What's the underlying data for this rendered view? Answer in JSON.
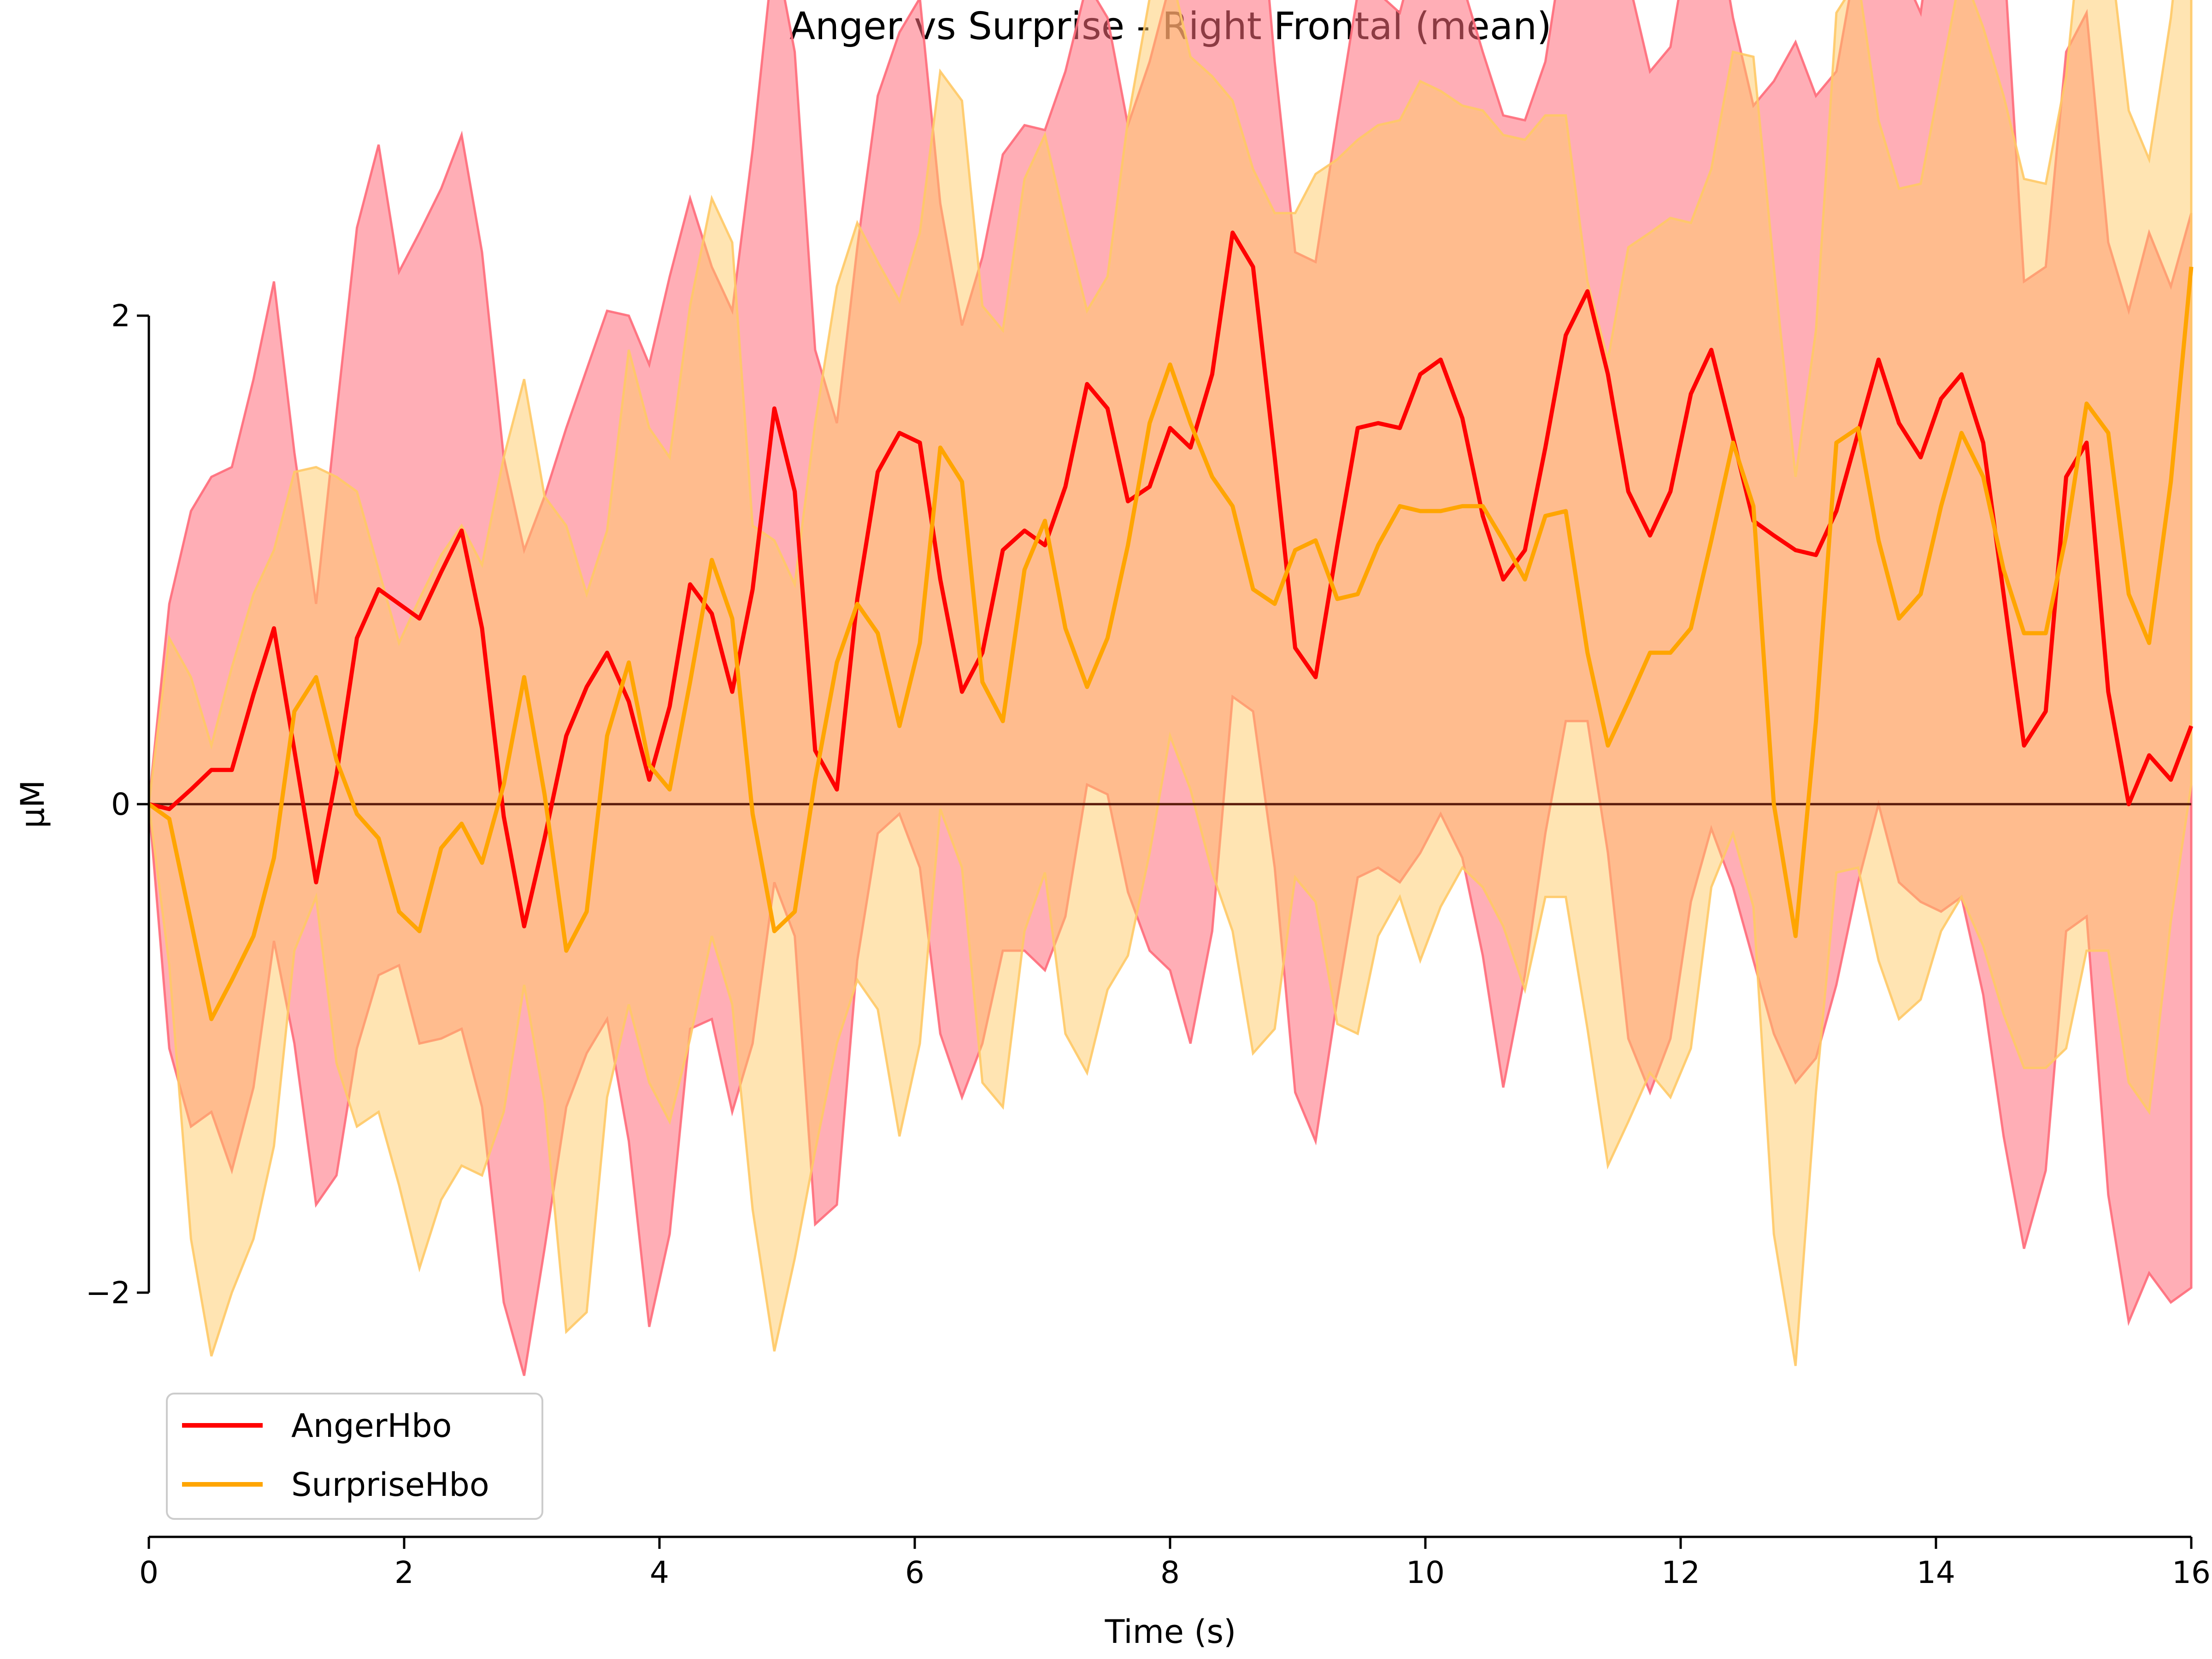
{
  "chart_data": {
    "type": "line",
    "title": "Anger vs Surprise - Right Frontal (mean)",
    "xlabel": "Time (s)",
    "ylabel": "µM",
    "xlim": [
      0,
      16
    ],
    "ylim": [
      -2,
      2
    ],
    "x_ticks": [
      "0",
      "2",
      "4",
      "6",
      "8",
      "10",
      "12",
      "14",
      "16"
    ],
    "y_ticks": [
      "−2",
      "0",
      "2"
    ],
    "grid": false,
    "zero_line": true,
    "legend": {
      "placement": "bottom-left"
    },
    "x": [
      0.0,
      0.16,
      0.33,
      0.49,
      0.65,
      0.82,
      0.98,
      1.14,
      1.31,
      1.47,
      1.63,
      1.8,
      1.96,
      2.12,
      2.29,
      2.45,
      2.61,
      2.78,
      2.94,
      3.1,
      3.27,
      3.43,
      3.59,
      3.76,
      3.92,
      4.08,
      4.24,
      4.41,
      4.57,
      4.73,
      4.9,
      5.06,
      5.22,
      5.39,
      5.55,
      5.71,
      5.88,
      6.04,
      6.2,
      6.37,
      6.53,
      6.69,
      6.86,
      7.02,
      7.18,
      7.35,
      7.51,
      7.67,
      7.84,
      8.0,
      8.16,
      8.33,
      8.49,
      8.65,
      8.82,
      8.98,
      9.14,
      9.31,
      9.47,
      9.63,
      9.8,
      9.96,
      10.12,
      10.29,
      10.45,
      10.61,
      10.78,
      10.94,
      11.1,
      11.27,
      11.43,
      11.59,
      11.76,
      11.92,
      12.08,
      12.24,
      12.41,
      12.57,
      12.73,
      12.9,
      13.06,
      13.22,
      13.39,
      13.55,
      13.71,
      13.88,
      14.04,
      14.2,
      14.37,
      14.53,
      14.69,
      14.86,
      15.02,
      15.18,
      15.35,
      15.51,
      15.67,
      15.84,
      16.0
    ],
    "series": [
      {
        "name": "AngerHbo",
        "color": "#ff0000",
        "band_color": "#ff6b7a",
        "values": [
          0,
          -0.02,
          0.06,
          0.14,
          0.14,
          0.45,
          0.72,
          0.22,
          -0.32,
          0.12,
          0.68,
          0.88,
          0.82,
          0.76,
          0.95,
          1.12,
          0.72,
          -0.05,
          -0.5,
          -0.14,
          0.28,
          0.48,
          0.62,
          0.42,
          0.1,
          0.4,
          0.9,
          0.78,
          0.46,
          0.88,
          1.62,
          1.28,
          0.22,
          0.06,
          0.84,
          1.36,
          1.52,
          1.48,
          0.92,
          0.46,
          0.62,
          1.04,
          1.12,
          1.06,
          1.3,
          1.72,
          1.62,
          1.24,
          1.3,
          1.54,
          1.46,
          1.76,
          2.34,
          2.2,
          1.42,
          0.64,
          0.52,
          1.06,
          1.54,
          1.56,
          1.54,
          1.76,
          1.82,
          1.58,
          1.18,
          0.92,
          1.04,
          1.46,
          1.92,
          2.1,
          1.76,
          1.28,
          1.1,
          1.28,
          1.68,
          1.86,
          1.5,
          1.16,
          1.1,
          1.04,
          1.02,
          1.2,
          1.52,
          1.82,
          1.56,
          1.42,
          1.66,
          1.76,
          1.48,
          0.86,
          0.24,
          0.38,
          1.34,
          1.48,
          0.46,
          0.0,
          0.2,
          0.1,
          0.32
        ],
        "upper": [
          0,
          0.82,
          1.2,
          1.34,
          1.38,
          1.74,
          2.14,
          1.44,
          0.82,
          1.6,
          2.36,
          2.7,
          2.18,
          2.34,
          2.52,
          2.74,
          2.26,
          1.42,
          1.04,
          1.26,
          1.54,
          1.78,
          2.02,
          2.0,
          1.8,
          2.16,
          2.48,
          2.2,
          2.02,
          2.68,
          3.52,
          3.08,
          1.86,
          1.56,
          2.28,
          2.9,
          3.16,
          3.3,
          2.46,
          1.96,
          2.24,
          2.66,
          2.78,
          2.76,
          3.0,
          3.36,
          3.22,
          2.78,
          3.04,
          3.36,
          3.6,
          3.76,
          4.12,
          4.06,
          3.04,
          2.26,
          2.22,
          2.8,
          3.32,
          3.32,
          3.24,
          3.56,
          3.58,
          3.36,
          3.08,
          2.82,
          2.8,
          3.04,
          3.58,
          3.86,
          3.76,
          3.38,
          3.0,
          3.1,
          3.6,
          3.74,
          3.22,
          2.86,
          2.96,
          3.12,
          2.9,
          3.0,
          3.5,
          3.8,
          3.44,
          3.24,
          3.84,
          3.74,
          3.76,
          3.5,
          2.14,
          2.2,
          3.08,
          3.24,
          2.3,
          2.02,
          2.34,
          2.12,
          2.42
        ],
        "lower": [
          0,
          -1.0,
          -1.32,
          -1.26,
          -1.5,
          -1.16,
          -0.56,
          -0.98,
          -1.64,
          -1.52,
          -1.0,
          -0.7,
          -0.66,
          -0.98,
          -0.96,
          -0.92,
          -1.24,
          -2.04,
          -2.34,
          -1.82,
          -1.24,
          -1.02,
          -0.88,
          -1.38,
          -2.14,
          -1.76,
          -0.92,
          -0.88,
          -1.26,
          -0.98,
          -0.32,
          -0.54,
          -1.72,
          -1.64,
          -0.64,
          -0.12,
          -0.04,
          -0.26,
          -0.94,
          -1.2,
          -0.98,
          -0.6,
          -0.6,
          -0.68,
          -0.46,
          0.08,
          0.04,
          -0.36,
          -0.6,
          -0.68,
          -0.98,
          -0.52,
          0.44,
          0.38,
          -0.26,
          -1.18,
          -1.38,
          -0.8,
          -0.3,
          -0.26,
          -0.32,
          -0.2,
          -0.04,
          -0.22,
          -0.62,
          -1.16,
          -0.7,
          -0.12,
          0.34,
          0.34,
          -0.2,
          -0.96,
          -1.18,
          -0.96,
          -0.4,
          -0.1,
          -0.34,
          -0.64,
          -0.94,
          -1.14,
          -1.04,
          -0.74,
          -0.32,
          0.0,
          -0.32,
          -0.4,
          -0.44,
          -0.38,
          -0.78,
          -1.36,
          -1.82,
          -1.5,
          -0.52,
          -0.46,
          -1.6,
          -2.12,
          -1.92,
          -2.04,
          -1.98
        ]
      },
      {
        "name": "SurpriseHbo",
        "color": "#ffa500",
        "band_color": "#ffc966",
        "values": [
          0,
          -0.06,
          -0.48,
          -0.88,
          -0.72,
          -0.54,
          -0.22,
          0.38,
          0.52,
          0.18,
          -0.04,
          -0.14,
          -0.44,
          -0.52,
          -0.18,
          -0.08,
          -0.24,
          0.08,
          0.52,
          0.04,
          -0.6,
          -0.44,
          0.28,
          0.58,
          0.16,
          0.06,
          0.5,
          1.0,
          0.76,
          -0.04,
          -0.52,
          -0.44,
          0.1,
          0.58,
          0.82,
          0.7,
          0.32,
          0.66,
          1.46,
          1.32,
          0.5,
          0.34,
          0.96,
          1.16,
          0.72,
          0.48,
          0.68,
          1.06,
          1.56,
          1.8,
          1.56,
          1.34,
          1.22,
          0.88,
          0.82,
          1.04,
          1.08,
          0.84,
          0.86,
          1.06,
          1.22,
          1.2,
          1.2,
          1.22,
          1.22,
          1.08,
          0.92,
          1.18,
          1.2,
          0.62,
          0.24,
          0.42,
          0.62,
          0.62,
          0.72,
          1.08,
          1.48,
          1.22,
          0.0,
          -0.54,
          0.34,
          1.48,
          1.54,
          1.08,
          0.76,
          0.86,
          1.22,
          1.52,
          1.34,
          0.96,
          0.7,
          0.7,
          1.1,
          1.64,
          1.52,
          0.86,
          0.66,
          1.32,
          2.2
        ],
        "upper": [
          0,
          0.68,
          0.52,
          0.24,
          0.56,
          0.86,
          1.04,
          1.36,
          1.38,
          1.34,
          1.28,
          0.96,
          0.66,
          0.84,
          1.02,
          1.14,
          0.98,
          1.42,
          1.74,
          1.26,
          1.14,
          0.86,
          1.12,
          1.86,
          1.54,
          1.42,
          2.04,
          2.48,
          2.3,
          1.14,
          1.08,
          0.9,
          1.56,
          2.12,
          2.38,
          2.22,
          2.06,
          2.34,
          3.0,
          2.88,
          2.04,
          1.94,
          2.56,
          2.74,
          2.38,
          2.02,
          2.16,
          2.8,
          3.3,
          3.42,
          3.06,
          2.98,
          2.88,
          2.6,
          2.42,
          2.42,
          2.58,
          2.64,
          2.72,
          2.78,
          2.8,
          2.96,
          2.92,
          2.86,
          2.84,
          2.74,
          2.72,
          2.82,
          2.82,
          2.14,
          1.82,
          2.28,
          2.34,
          2.4,
          2.38,
          2.6,
          3.08,
          3.06,
          2.2,
          1.34,
          1.94,
          3.24,
          3.38,
          2.8,
          2.52,
          2.54,
          2.98,
          3.42,
          3.18,
          2.9,
          2.56,
          2.54,
          2.98,
          3.82,
          3.56,
          2.84,
          2.64,
          3.22,
          4.0
        ],
        "lower": [
          0,
          -0.66,
          -1.78,
          -2.26,
          -2.0,
          -1.78,
          -1.4,
          -0.6,
          -0.38,
          -1.06,
          -1.32,
          -1.26,
          -1.56,
          -1.9,
          -1.62,
          -1.48,
          -1.52,
          -1.26,
          -0.74,
          -1.22,
          -2.16,
          -2.08,
          -1.2,
          -0.82,
          -1.14,
          -1.3,
          -0.96,
          -0.54,
          -0.82,
          -1.66,
          -2.24,
          -1.86,
          -1.42,
          -0.98,
          -0.72,
          -0.84,
          -1.36,
          -0.98,
          -0.02,
          -0.26,
          -1.14,
          -1.24,
          -0.52,
          -0.28,
          -0.94,
          -1.1,
          -0.76,
          -0.62,
          -0.2,
          0.28,
          0.06,
          -0.28,
          -0.52,
          -1.02,
          -0.92,
          -0.3,
          -0.4,
          -0.9,
          -0.94,
          -0.54,
          -0.38,
          -0.64,
          -0.42,
          -0.26,
          -0.34,
          -0.5,
          -0.76,
          -0.38,
          -0.38,
          -0.92,
          -1.48,
          -1.3,
          -1.1,
          -1.2,
          -1.0,
          -0.34,
          -0.12,
          -0.42,
          -1.76,
          -2.3,
          -1.18,
          -0.28,
          -0.26,
          -0.64,
          -0.88,
          -0.8,
          -0.52,
          -0.38,
          -0.58,
          -0.86,
          -1.08,
          -1.08,
          -1.0,
          -0.6,
          -0.6,
          -1.14,
          -1.26,
          -0.48,
          0.08
        ]
      }
    ]
  }
}
